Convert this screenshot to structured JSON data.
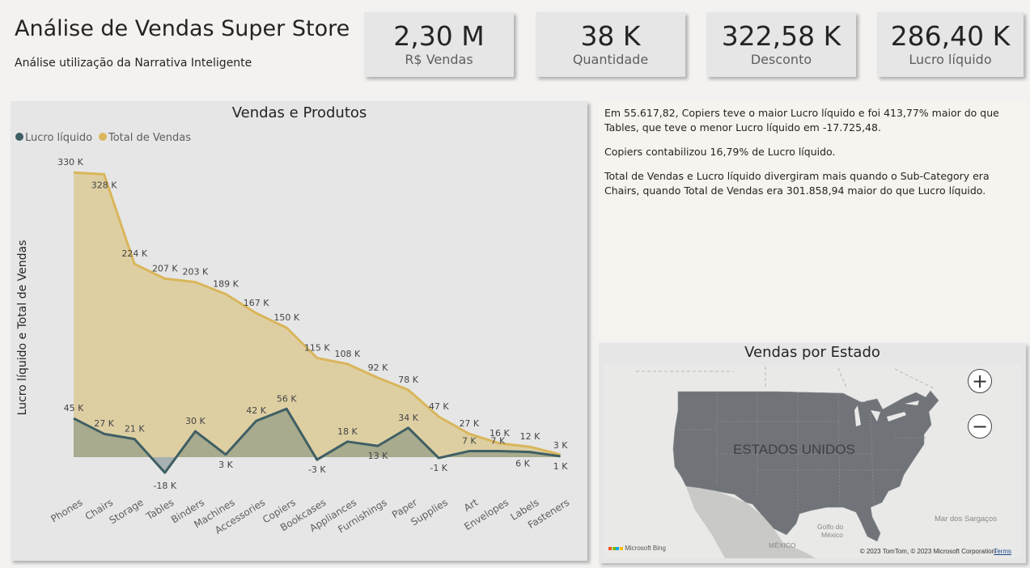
{
  "header": {
    "title": "Análise de Vendas Super Store",
    "subtitle": "Análise utilização da Narrativa Inteligente"
  },
  "kpis": [
    {
      "value": "2,30 M",
      "label": "R$ Vendas"
    },
    {
      "value": "38 K",
      "label": "Quantidade"
    },
    {
      "value": "322,58 K",
      "label": "Desconto"
    },
    {
      "value": "286,40 K",
      "label": "Lucro líquido"
    }
  ],
  "narrative": {
    "paragraphs": [
      "Em 55.617,82, Copiers teve o maior Lucro líquido e foi 413,77% maior do que Tables, que teve o menor Lucro líquido em -17.725,48.",
      "Copiers contabilizou 16,79% de Lucro líquido.",
      "Total de Vendas e Lucro líquido divergiram mais quando o Sub-Category era Chairs, quando Total de Vendas era 301.858,94 maior do que Lucro líquido."
    ]
  },
  "map": {
    "title": "Vendas por Estado",
    "country_label": "ESTADOS UNIDOS",
    "labels": {
      "sea": "Mar dos Sargaços",
      "gulf_line1": "Golfo do",
      "gulf_line2": "México",
      "mexico": "MÉXICO"
    },
    "credit": "© 2023 TomTom, © 2023 Microsoft Corporation",
    "terms": "Terms",
    "bing": "Microsoft Bing",
    "zoom_in": "+",
    "zoom_out": "−"
  },
  "colors": {
    "total_vendas": "#d9b65b",
    "total_vendas_fill": "#decfa3",
    "lucro_liquido": "#3f5f64",
    "lucro_fill": "#9fa48a",
    "lucro_neg_fill": "#a7b1b3",
    "land": "#707478",
    "panel": "#e6e6e6"
  },
  "chart_data": {
    "type": "area",
    "title": "Vendas e Produtos",
    "xlabel": "",
    "ylabel": "Lucro líquido e Total de Vendas",
    "legend_position": "top-left",
    "grid": false,
    "ylim": [
      -25,
      340
    ],
    "categories": [
      "Phones",
      "Chairs",
      "Storage",
      "Tables",
      "Binders",
      "Machines",
      "Accessories",
      "Copiers",
      "Bookcases",
      "Appliances",
      "Furnishings",
      "Paper",
      "Supplies",
      "Art",
      "Envelopes",
      "Labels",
      "Fasteners"
    ],
    "series": [
      {
        "name": "Lucro líquido",
        "values": [
          45,
          27,
          21,
          -18,
          30,
          3,
          42,
          56,
          -3,
          18,
          13,
          34,
          -1,
          7,
          7,
          6,
          1
        ],
        "labels": [
          "45 K",
          "27 K",
          "21 K",
          "-18 K",
          "30 K",
          "3 K",
          "42 K",
          "56 K",
          "-3 K",
          "18 K",
          "13 K",
          "34 K",
          "-1 K",
          "7 K",
          "7 K",
          "6 K",
          "1 K"
        ]
      },
      {
        "name": "Total de Vendas",
        "values": [
          330,
          328,
          224,
          207,
          203,
          189,
          167,
          150,
          115,
          108,
          92,
          78,
          47,
          27,
          16,
          12,
          3
        ],
        "labels": [
          "330 K",
          "328 K",
          "224 K",
          "207 K",
          "203 K",
          "189 K",
          "167 K",
          "150 K",
          "115 K",
          "108 K",
          "92 K",
          "78 K",
          "47 K",
          "27 K",
          "16 K",
          "12 K",
          "3 K"
        ]
      }
    ]
  }
}
